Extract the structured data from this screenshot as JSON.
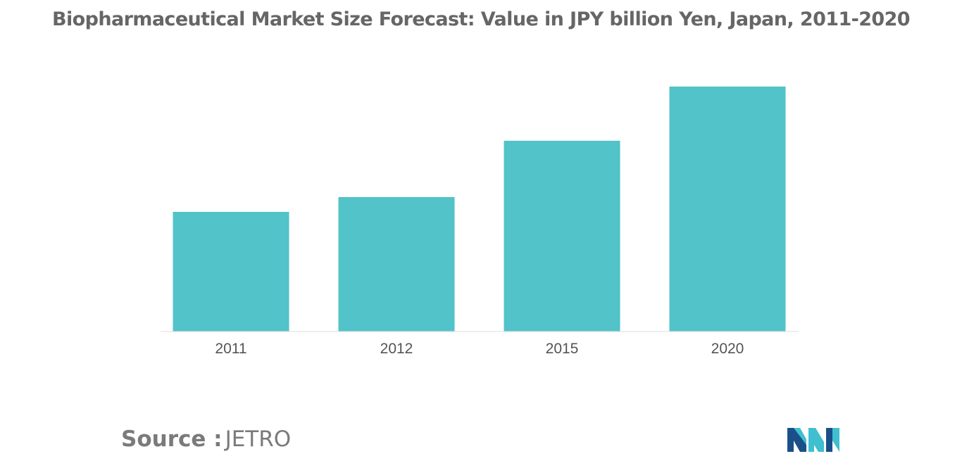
{
  "chart_data": {
    "type": "bar",
    "title": "Biopharmaceutical Market Size Forecast: Value in JPY billion Yen, Japan, 2011-2020",
    "categories": [
      "2011",
      "2012",
      "2015",
      "2020"
    ],
    "values": [
      170,
      191,
      271,
      348
    ],
    "xlabel": "",
    "ylabel": "",
    "ylim": [
      0,
      348
    ],
    "grid": false,
    "legend": "none",
    "bar_color": "#51c3c9",
    "axis_color": "#dddddd"
  },
  "source": {
    "label": "Source :",
    "value": "JETRO"
  },
  "logo": {
    "icon": "mordor-intelligence-logo-icon",
    "colors": [
      "#1a4f8a",
      "#3fbfd0"
    ]
  }
}
